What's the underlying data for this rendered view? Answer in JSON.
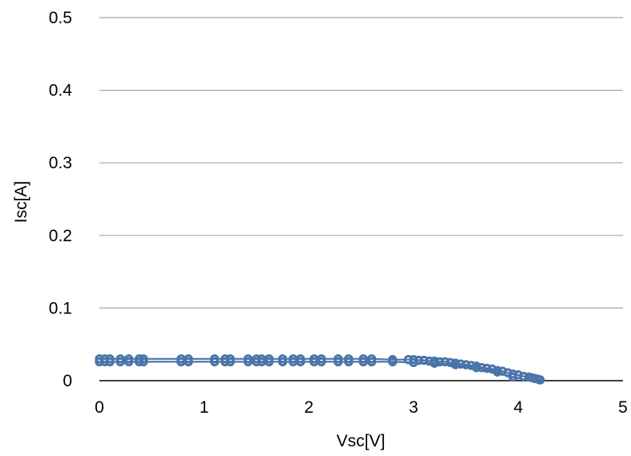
{
  "chart_data": {
    "type": "scatter",
    "title": "",
    "xlabel": "Vsc[V]",
    "ylabel": "Isc[A]",
    "xlim": [
      0,
      5
    ],
    "ylim": [
      0,
      0.5
    ],
    "x_ticks": [
      "0",
      "1",
      "2",
      "3",
      "4",
      "5"
    ],
    "y_ticks": [
      "0",
      "0.1",
      "0.2",
      "0.3",
      "0.4",
      "0.5"
    ],
    "grid": "horizontal",
    "legend": "none",
    "color": "#4a75a8",
    "series": [
      {
        "name": "",
        "x": [
          0.0,
          0.05,
          0.1,
          0.2,
          0.28,
          0.38,
          0.42,
          0.78,
          0.85,
          1.1,
          1.2,
          1.25,
          1.42,
          1.5,
          1.55,
          1.62,
          1.75,
          1.85,
          1.92,
          2.05,
          2.12,
          2.28,
          2.38,
          2.52,
          2.6,
          2.8,
          2.95,
          3.0,
          3.05,
          3.1,
          3.15,
          3.2,
          3.25,
          3.3,
          3.35,
          3.4,
          3.45,
          3.5,
          3.55,
          3.6,
          3.65,
          3.7,
          3.75,
          3.8,
          3.85,
          3.9,
          3.95,
          4.0,
          4.05,
          4.1,
          4.13,
          4.16,
          4.19,
          4.21
        ],
        "y": [
          0.03,
          0.03,
          0.03,
          0.03,
          0.03,
          0.03,
          0.03,
          0.03,
          0.03,
          0.03,
          0.03,
          0.03,
          0.03,
          0.03,
          0.03,
          0.03,
          0.03,
          0.03,
          0.03,
          0.03,
          0.03,
          0.03,
          0.03,
          0.03,
          0.03,
          0.029,
          0.029,
          0.029,
          0.028,
          0.028,
          0.027,
          0.027,
          0.026,
          0.026,
          0.025,
          0.024,
          0.023,
          0.022,
          0.021,
          0.02,
          0.018,
          0.017,
          0.016,
          0.014,
          0.013,
          0.011,
          0.009,
          0.008,
          0.006,
          0.005,
          0.004,
          0.003,
          0.002,
          0.001
        ]
      },
      {
        "name": "",
        "x": [
          0.0,
          0.05,
          0.1,
          0.2,
          0.28,
          0.38,
          0.42,
          0.78,
          0.85,
          1.1,
          1.2,
          1.25,
          1.42,
          1.5,
          1.55,
          1.62,
          1.75,
          1.85,
          1.92,
          2.05,
          2.12,
          2.28,
          2.38,
          2.52,
          2.6,
          2.8,
          3.0,
          3.2,
          3.4,
          3.6,
          3.8,
          3.95
        ],
        "y": [
          0.026,
          0.026,
          0.026,
          0.026,
          0.026,
          0.026,
          0.026,
          0.026,
          0.026,
          0.026,
          0.026,
          0.026,
          0.026,
          0.026,
          0.026,
          0.026,
          0.026,
          0.026,
          0.026,
          0.026,
          0.026,
          0.026,
          0.026,
          0.026,
          0.026,
          0.026,
          0.025,
          0.024,
          0.022,
          0.018,
          0.012,
          0.005
        ]
      }
    ]
  }
}
